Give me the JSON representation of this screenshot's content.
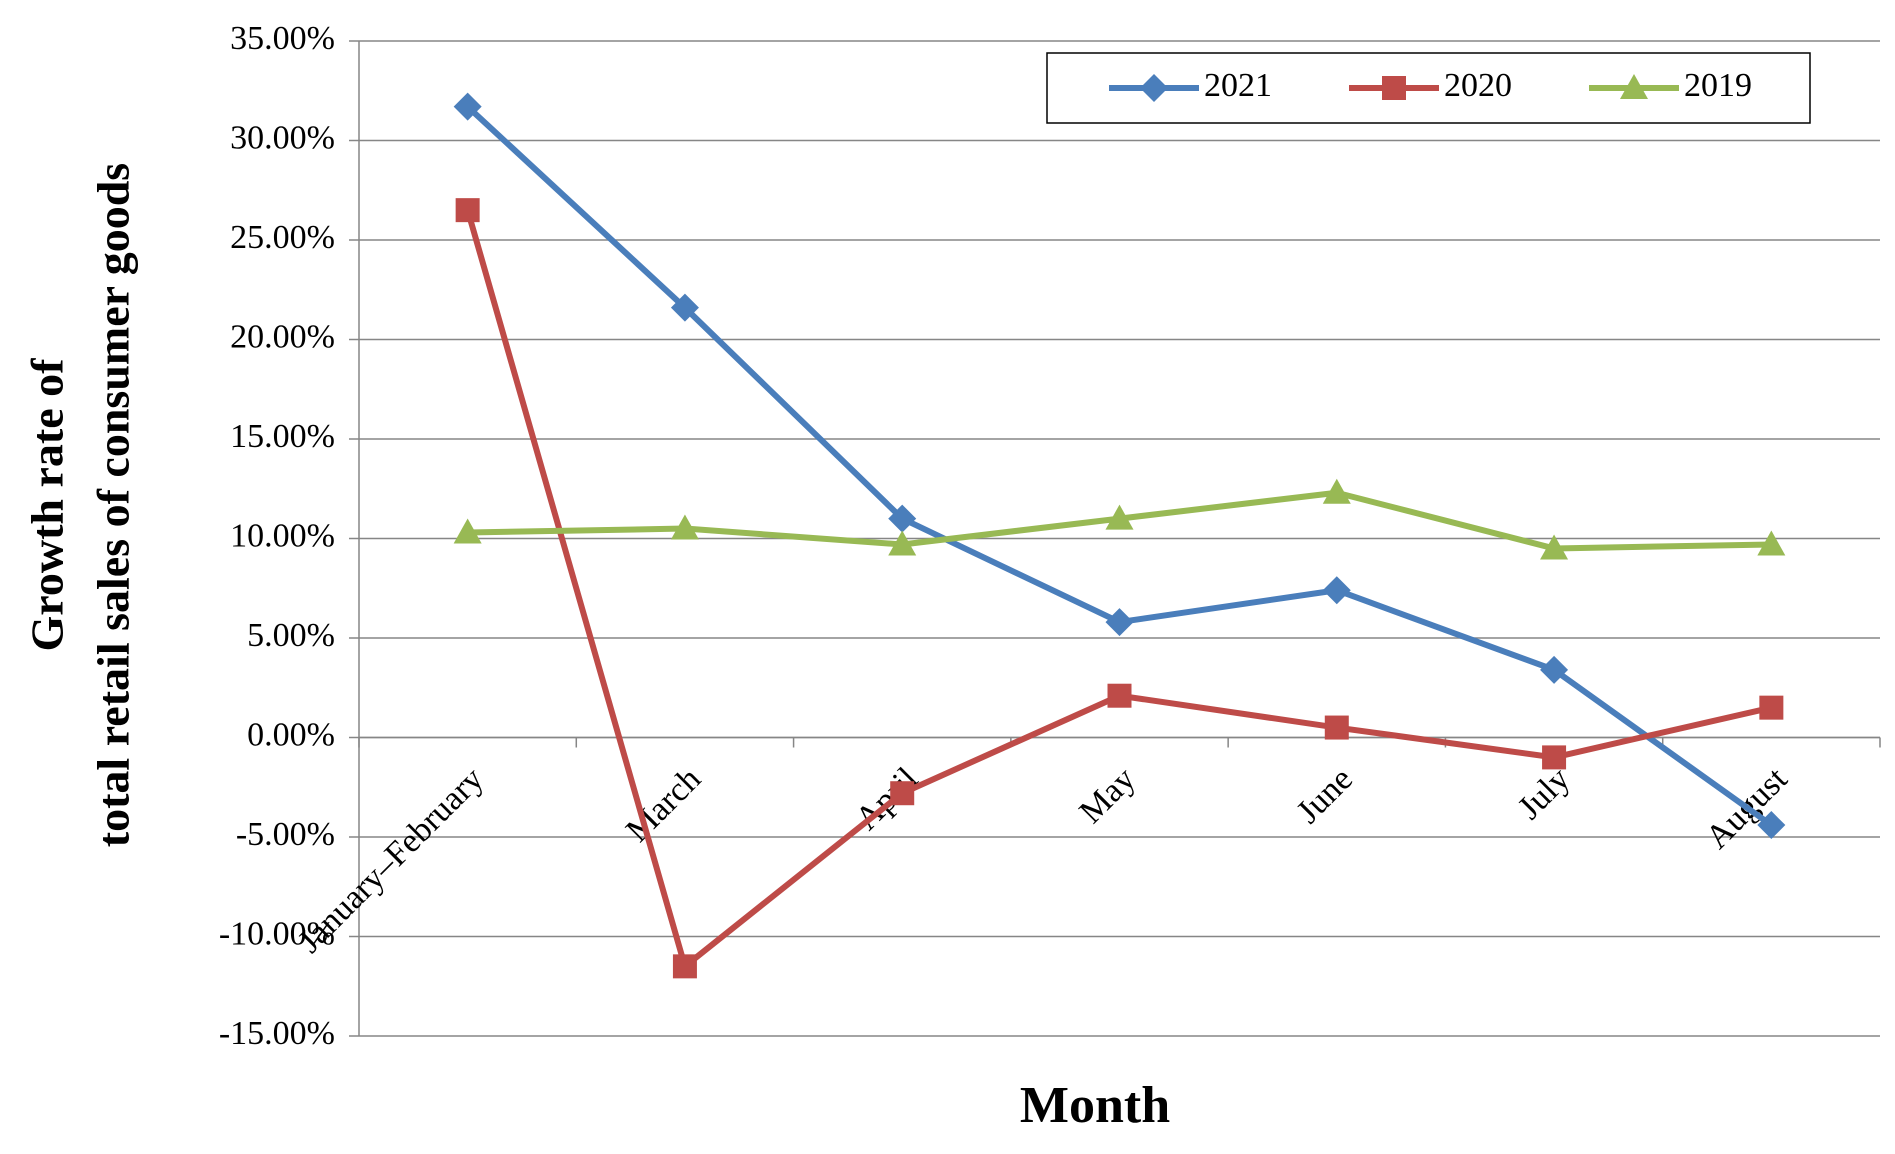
{
  "chart_data": {
    "type": "line",
    "x_label": "Month",
    "y_label": [
      "Growth rate of",
      "total retail sales of consumer goods"
    ],
    "categories": [
      "January–February",
      "March",
      "April",
      "May",
      "June",
      "July",
      "August"
    ],
    "series": [
      {
        "name": "2021",
        "color": "#4a7ebb",
        "marker": "diamond",
        "values": [
          31.7,
          21.6,
          11.0,
          5.8,
          7.4,
          3.4,
          -4.4
        ]
      },
      {
        "name": "2020",
        "color": "#be4b48",
        "marker": "square",
        "values": [
          26.5,
          -11.5,
          -2.8,
          2.1,
          0.5,
          -1.0,
          1.5
        ]
      },
      {
        "name": "2019",
        "color": "#98b954",
        "marker": "triangle",
        "values": [
          10.3,
          10.5,
          9.7,
          11.0,
          12.3,
          9.5,
          9.7
        ]
      }
    ],
    "ylim": [
      -15,
      35
    ],
    "yticks": [
      {
        "value": -15,
        "label": "-15.00%"
      },
      {
        "value": -10,
        "label": "-10.00%"
      },
      {
        "value": -5,
        "label": "-5.00%"
      },
      {
        "value": 0,
        "label": "0.00%"
      },
      {
        "value": 5,
        "label": "5.00%"
      },
      {
        "value": 10,
        "label": "10.00%"
      },
      {
        "value": 15,
        "label": "15.00%"
      },
      {
        "value": 20,
        "label": "20.00%"
      },
      {
        "value": 25,
        "label": "25.00%"
      },
      {
        "value": 30,
        "label": "30.00%"
      },
      {
        "value": 35,
        "label": "35.00%"
      }
    ],
    "grid": true,
    "legend": "top-right"
  }
}
